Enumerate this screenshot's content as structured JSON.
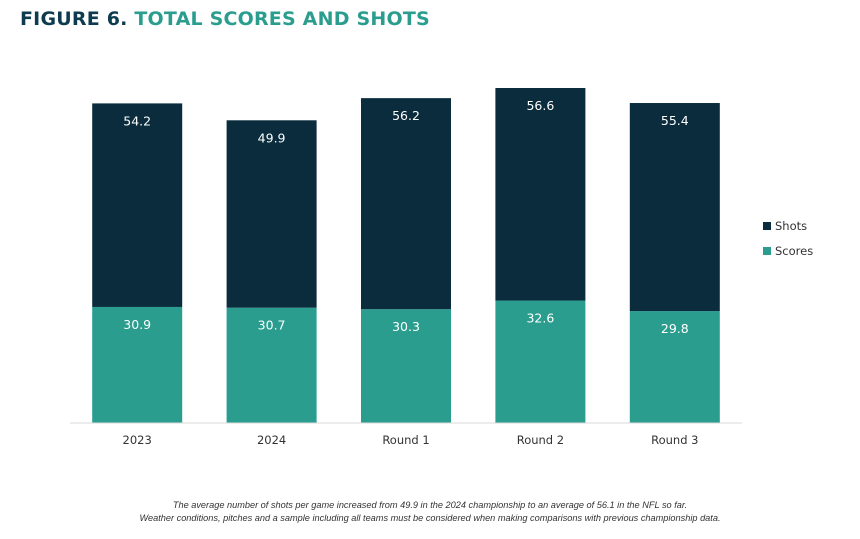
{
  "title": {
    "figure_label": "FIGURE 6.",
    "chart_title": "TOTAL SCORES AND SHOTS"
  },
  "colors": {
    "shots": "#0a2c3d",
    "scores": "#2a9d8f",
    "title_dark": "#0d3b4f",
    "title_teal": "#2a9d8f",
    "axis": "#d9d9d9"
  },
  "chart_data": {
    "type": "bar",
    "stacked": true,
    "categories": [
      "2023",
      "2024",
      "Round 1",
      "Round 2",
      "Round 3"
    ],
    "series": [
      {
        "name": "Scores",
        "values": [
          30.9,
          30.7,
          30.3,
          32.6,
          29.8
        ]
      },
      {
        "name": "Shots",
        "values": [
          54.2,
          49.9,
          56.2,
          56.6,
          55.4
        ]
      }
    ],
    "legend": [
      "Shots",
      "Scores"
    ],
    "legend_position": "right",
    "grid": false,
    "y_axis_visible": false
  },
  "caption": {
    "line1": "The average number of shots per game increased from 49.9 in the 2024 championship to an average of 56.1 in the NFL so far.",
    "line2": "Weather conditions, pitches and a sample including all teams must be considered when making comparisons with previous championship data."
  }
}
